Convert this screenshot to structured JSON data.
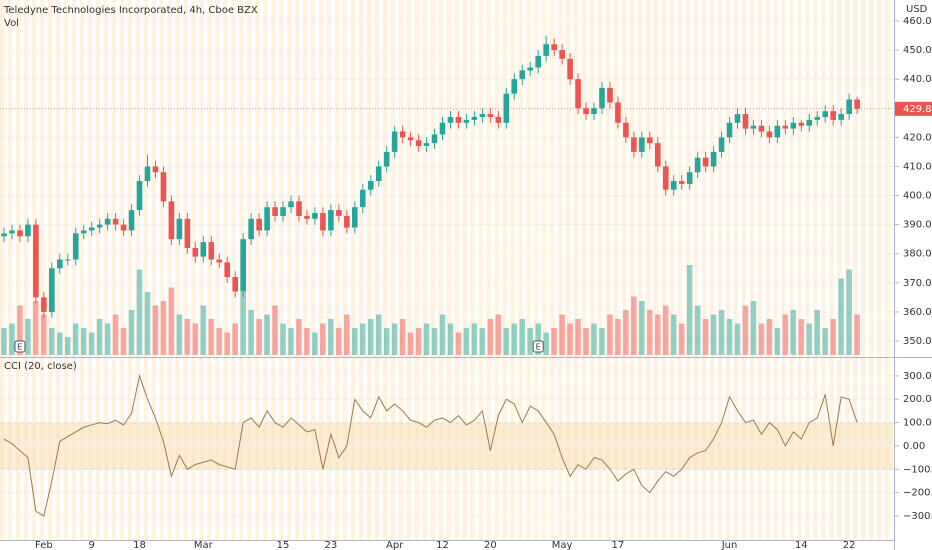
{
  "chart_data": [
    {
      "type": "candlestick",
      "title": "Teledyne Technologies Incorporated, 4h, Cboe BZX",
      "subtitle": "Vol",
      "y_axis_label": "USD",
      "up_color": "#26a69a",
      "down_color": "#ef5350",
      "categories": [
        null,
        null,
        null,
        null,
        null,
        "Feb",
        null,
        null,
        null,
        null,
        null,
        "9",
        null,
        null,
        null,
        null,
        null,
        "18",
        null,
        null,
        null,
        null,
        null,
        null,
        null,
        "Mar",
        null,
        null,
        null,
        null,
        null,
        null,
        null,
        null,
        null,
        "15",
        null,
        null,
        null,
        null,
        null,
        "23",
        null,
        null,
        null,
        null,
        null,
        null,
        null,
        "Apr",
        null,
        null,
        null,
        null,
        null,
        "12",
        null,
        null,
        null,
        null,
        null,
        "20",
        null,
        null,
        null,
        null,
        null,
        null,
        null,
        null,
        "May",
        null,
        null,
        null,
        null,
        null,
        null,
        "17",
        null,
        null,
        null,
        null,
        null,
        null,
        null,
        null,
        null,
        null,
        null,
        null,
        null,
        "Jun",
        null,
        null,
        null,
        null,
        null,
        null,
        null,
        null,
        "14",
        null,
        null,
        null,
        null,
        null,
        "22",
        null
      ],
      "open": [
        386,
        387,
        388,
        386,
        390,
        365,
        360,
        375,
        378,
        378,
        387,
        388,
        389,
        390,
        392,
        390,
        388,
        395,
        405,
        410,
        408,
        398,
        385,
        392,
        382,
        379,
        384,
        378,
        377,
        372,
        367,
        385,
        392,
        388,
        396,
        393,
        396,
        398,
        393,
        392,
        394,
        388,
        395,
        393,
        389,
        396,
        402,
        405,
        410,
        415,
        422,
        420,
        419,
        417,
        418,
        421,
        425,
        427,
        425,
        426,
        427,
        428,
        427,
        425,
        435,
        440,
        443,
        444,
        448,
        452,
        450,
        447,
        440,
        430,
        428,
        430,
        437,
        432,
        425,
        420,
        415,
        420,
        418,
        410,
        402,
        405,
        404,
        408,
        413,
        410,
        415,
        420,
        425,
        428,
        423,
        424,
        422,
        420,
        424,
        423,
        425,
        424,
        426,
        427,
        429,
        426,
        428,
        433
      ],
      "high": [
        389,
        390,
        390,
        392,
        392,
        367,
        377,
        380,
        380,
        389,
        390,
        391,
        392,
        394,
        394,
        392,
        397,
        407,
        414,
        412,
        410,
        400,
        394,
        394,
        384,
        386,
        386,
        380,
        379,
        374,
        387,
        394,
        394,
        398,
        398,
        398,
        400,
        400,
        395,
        396,
        396,
        397,
        397,
        395,
        398,
        404,
        407,
        412,
        417,
        424,
        424,
        422,
        421,
        420,
        423,
        427,
        429,
        429,
        428,
        429,
        430,
        430,
        429,
        437,
        442,
        445,
        446,
        450,
        455,
        454,
        452,
        449,
        442,
        432,
        432,
        439,
        439,
        434,
        427,
        422,
        422,
        422,
        420,
        412,
        407,
        407,
        410,
        415,
        415,
        417,
        422,
        427,
        430,
        430,
        426,
        426,
        424,
        426,
        426,
        427,
        426,
        428,
        429,
        431,
        431,
        430,
        435,
        434
      ],
      "low": [
        384,
        385,
        384,
        384,
        363,
        358,
        358,
        373,
        376,
        376,
        385,
        386,
        387,
        388,
        388,
        386,
        386,
        393,
        403,
        406,
        396,
        383,
        383,
        380,
        377,
        377,
        376,
        375,
        370,
        365,
        365,
        383,
        386,
        386,
        391,
        391,
        394,
        391,
        390,
        390,
        386,
        386,
        391,
        387,
        387,
        394,
        400,
        403,
        408,
        413,
        418,
        417,
        415,
        415,
        416,
        419,
        423,
        423,
        423,
        424,
        425,
        425,
        423,
        423,
        433,
        438,
        441,
        442,
        446,
        448,
        445,
        438,
        428,
        426,
        426,
        428,
        430,
        423,
        418,
        413,
        413,
        416,
        408,
        400,
        400,
        402,
        402,
        406,
        408,
        408,
        413,
        418,
        423,
        421,
        421,
        420,
        418,
        418,
        421,
        421,
        422,
        422,
        424,
        425,
        424,
        424,
        426,
        428
      ],
      "close": [
        387,
        388,
        386,
        390,
        365,
        360,
        375,
        378,
        378,
        387,
        388,
        389,
        390,
        392,
        390,
        388,
        395,
        405,
        410,
        408,
        398,
        385,
        392,
        382,
        379,
        384,
        378,
        377,
        372,
        367,
        385,
        392,
        388,
        396,
        393,
        396,
        398,
        393,
        392,
        394,
        388,
        395,
        393,
        389,
        396,
        402,
        405,
        410,
        415,
        422,
        420,
        419,
        417,
        418,
        421,
        425,
        427,
        425,
        426,
        427,
        428,
        427,
        425,
        435,
        440,
        443,
        444,
        448,
        452,
        450,
        447,
        440,
        430,
        428,
        430,
        437,
        432,
        425,
        420,
        415,
        420,
        418,
        410,
        402,
        405,
        404,
        408,
        413,
        410,
        415,
        420,
        425,
        428,
        423,
        424,
        422,
        420,
        424,
        423,
        425,
        424,
        426,
        427,
        429,
        426,
        428,
        433,
        429.81
      ],
      "volume": [
        30,
        35,
        55,
        40,
        60,
        45,
        30,
        25,
        20,
        35,
        30,
        25,
        40,
        35,
        45,
        30,
        50,
        95,
        70,
        55,
        60,
        75,
        45,
        40,
        35,
        55,
        40,
        30,
        25,
        35,
        70,
        50,
        40,
        45,
        55,
        35,
        30,
        40,
        30,
        25,
        35,
        40,
        30,
        45,
        30,
        35,
        40,
        45,
        30,
        35,
        40,
        25,
        30,
        35,
        30,
        45,
        35,
        25,
        30,
        35,
        30,
        40,
        45,
        30,
        35,
        40,
        30,
        35,
        25,
        30,
        45,
        35,
        40,
        30,
        35,
        30,
        45,
        40,
        50,
        65,
        60,
        50,
        45,
        55,
        45,
        35,
        100,
        55,
        40,
        45,
        50,
        40,
        35,
        55,
        60,
        35,
        40,
        30,
        45,
        50,
        40,
        35,
        50,
        30,
        40,
        85,
        95,
        45
      ],
      "annotations": [
        {
          "index": 2,
          "text": "E"
        },
        {
          "index": 67,
          "text": "E"
        }
      ],
      "ylim": [
        345.2,
        467.2
      ],
      "yticks": [
        {
          "value": 350,
          "label": "350.00"
        },
        {
          "value": 360,
          "label": "360.00"
        },
        {
          "value": 370,
          "label": "370.00"
        },
        {
          "value": 380,
          "label": "380.00"
        },
        {
          "value": 390,
          "label": "390.00"
        },
        {
          "value": 400,
          "label": "400.00"
        },
        {
          "value": 410,
          "label": "410.00"
        },
        {
          "value": 420,
          "label": "420.00"
        },
        {
          "value": 430,
          "label": "430.00"
        },
        {
          "value": 440,
          "label": "440.00"
        },
        {
          "value": 450,
          "label": "450.00"
        },
        {
          "value": 460,
          "label": "460.00"
        }
      ]
    },
    {
      "type": "line",
      "title": "CCI (20, close)",
      "color": "#a0784b",
      "band": [
        -100,
        100
      ],
      "values": [
        30,
        10,
        -20,
        -50,
        -280,
        -300,
        -150,
        20,
        40,
        60,
        80,
        90,
        100,
        95,
        110,
        90,
        140,
        300,
        200,
        120,
        20,
        -130,
        -40,
        -100,
        -80,
        -70,
        -60,
        -80,
        -90,
        -100,
        100,
        120,
        80,
        150,
        100,
        80,
        120,
        90,
        60,
        70,
        -100,
        50,
        -50,
        0,
        200,
        150,
        120,
        210,
        150,
        180,
        150,
        110,
        100,
        80,
        110,
        120,
        100,
        130,
        90,
        110,
        150,
        -20,
        130,
        200,
        180,
        100,
        170,
        150,
        100,
        50,
        -50,
        -130,
        -80,
        -100,
        -50,
        -60,
        -100,
        -150,
        -120,
        -100,
        -170,
        -200,
        -150,
        -110,
        -130,
        -100,
        -50,
        -30,
        -20,
        30,
        100,
        210,
        150,
        100,
        110,
        50,
        100,
        70,
        0,
        60,
        30,
        100,
        120,
        220,
        0,
        210,
        200,
        100
      ],
      "ylim": [
        -403,
        381
      ],
      "yticks": [
        {
          "value": 300,
          "label": "300.00"
        },
        {
          "value": 200,
          "label": "200.00"
        },
        {
          "value": 100,
          "label": "100.00"
        },
        {
          "value": 0,
          "label": "0.00"
        },
        {
          "value": -100,
          "label": "−100.00"
        },
        {
          "value": -200,
          "label": "−200.00"
        },
        {
          "value": -300,
          "label": "−300.00"
        }
      ]
    }
  ]
}
